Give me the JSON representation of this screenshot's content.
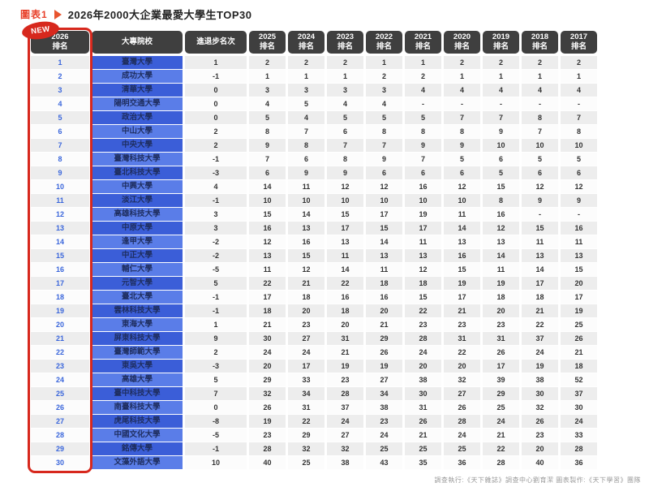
{
  "page": {
    "figure_label": "圖表1",
    "title": "2026年2000大企業最愛大學生TOP30",
    "new_badge": "NEW",
    "footer": "調查執行:《天下雜誌》調查中心劉育潔 圖表製作:《天下學習》團隊"
  },
  "colors": {
    "accent_red": "#d7281d",
    "title_red": "#e8402a",
    "header_dark": "#3f3f3f",
    "name_blue_dark": "#3b5ed8",
    "name_blue_light": "#5a7de8",
    "rank_text_blue": "#3a66db",
    "cell_gray": "#ededed"
  },
  "chart_data": {
    "type": "table",
    "columns": [
      "2026排名",
      "大專院校",
      "進退步名次",
      "2025排名",
      "2024排名",
      "2023排名",
      "2022排名",
      "2021排名",
      "2020排名",
      "2019排名",
      "2018排名",
      "2017排名"
    ],
    "rows": [
      [
        1,
        "臺灣大學",
        1,
        2,
        2,
        2,
        1,
        1,
        2,
        2,
        2,
        2
      ],
      [
        2,
        "成功大學",
        -1,
        1,
        1,
        1,
        2,
        2,
        1,
        1,
        1,
        1
      ],
      [
        3,
        "清華大學",
        0,
        3,
        3,
        3,
        3,
        4,
        4,
        4,
        4,
        4
      ],
      [
        4,
        "陽明交通大學",
        0,
        4,
        5,
        4,
        4,
        "-",
        "-",
        "-",
        "-",
        "-"
      ],
      [
        5,
        "政治大學",
        0,
        5,
        4,
        5,
        5,
        5,
        7,
        7,
        8,
        7
      ],
      [
        6,
        "中山大學",
        2,
        8,
        7,
        6,
        8,
        8,
        8,
        9,
        7,
        8
      ],
      [
        7,
        "中央大學",
        2,
        9,
        8,
        7,
        7,
        9,
        9,
        10,
        10,
        10
      ],
      [
        8,
        "臺灣科技大學",
        -1,
        7,
        6,
        8,
        9,
        7,
        5,
        6,
        5,
        5
      ],
      [
        9,
        "臺北科技大學",
        -3,
        6,
        9,
        9,
        6,
        6,
        6,
        5,
        6,
        6
      ],
      [
        10,
        "中興大學",
        4,
        14,
        11,
        12,
        12,
        16,
        12,
        15,
        12,
        12
      ],
      [
        11,
        "淡江大學",
        -1,
        10,
        10,
        10,
        10,
        10,
        10,
        8,
        9,
        9
      ],
      [
        12,
        "高雄科技大學",
        3,
        15,
        14,
        15,
        17,
        19,
        11,
        16,
        "-",
        "-"
      ],
      [
        13,
        "中原大學",
        3,
        16,
        13,
        17,
        15,
        17,
        14,
        12,
        15,
        16
      ],
      [
        14,
        "逢甲大學",
        -2,
        12,
        16,
        13,
        14,
        11,
        13,
        13,
        11,
        11
      ],
      [
        15,
        "中正大學",
        -2,
        13,
        15,
        11,
        13,
        13,
        16,
        14,
        13,
        13
      ],
      [
        16,
        "輔仁大學",
        -5,
        11,
        12,
        14,
        11,
        12,
        15,
        11,
        14,
        15
      ],
      [
        17,
        "元智大學",
        5,
        22,
        21,
        22,
        18,
        18,
        19,
        19,
        17,
        20
      ],
      [
        18,
        "臺北大學",
        -1,
        17,
        18,
        16,
        16,
        15,
        17,
        18,
        18,
        17
      ],
      [
        19,
        "雲林科技大學",
        -1,
        18,
        20,
        18,
        20,
        22,
        21,
        20,
        21,
        19
      ],
      [
        20,
        "東海大學",
        1,
        21,
        23,
        20,
        21,
        23,
        23,
        23,
        22,
        25
      ],
      [
        21,
        "屏東科技大學",
        9,
        30,
        27,
        31,
        29,
        28,
        31,
        31,
        37,
        26
      ],
      [
        22,
        "臺灣師範大學",
        2,
        24,
        24,
        21,
        26,
        24,
        22,
        26,
        24,
        21
      ],
      [
        23,
        "東吳大學",
        -3,
        20,
        17,
        19,
        19,
        20,
        20,
        17,
        19,
        18
      ],
      [
        24,
        "高雄大學",
        5,
        29,
        33,
        23,
        27,
        38,
        32,
        39,
        38,
        52
      ],
      [
        25,
        "臺中科技大學",
        7,
        32,
        34,
        28,
        34,
        30,
        27,
        29,
        30,
        37
      ],
      [
        26,
        "南臺科技大學",
        0,
        26,
        31,
        37,
        38,
        31,
        26,
        25,
        32,
        30
      ],
      [
        27,
        "虎尾科技大學",
        -8,
        19,
        22,
        24,
        23,
        26,
        28,
        24,
        26,
        24
      ],
      [
        28,
        "中國文化大學",
        -5,
        23,
        29,
        27,
        24,
        21,
        24,
        21,
        23,
        33
      ],
      [
        29,
        "銘傳大學",
        -1,
        28,
        32,
        32,
        25,
        25,
        25,
        22,
        20,
        28
      ],
      [
        30,
        "文藻外語大學",
        10,
        40,
        25,
        38,
        43,
        35,
        36,
        28,
        40,
        36
      ]
    ]
  }
}
